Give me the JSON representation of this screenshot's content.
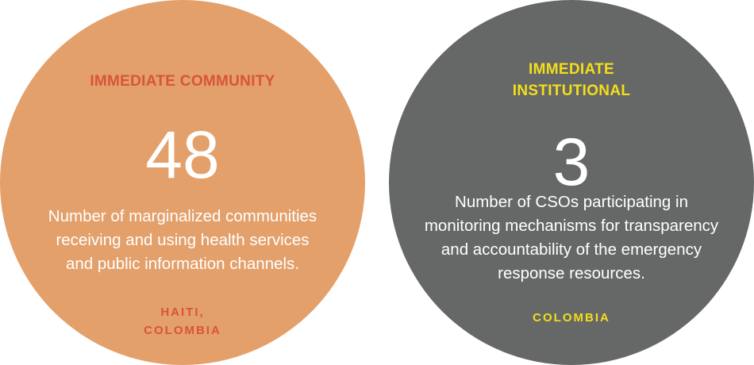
{
  "cards": [
    {
      "heading": "IMMEDIATE COMMUNITY",
      "number": "48",
      "description_lines": [
        "Number of marginalized communities",
        "receiving and using health services",
        "and public information channels."
      ],
      "location_lines": [
        "HAITI,",
        "COLOMBIA"
      ],
      "colors": {
        "background": "#e3a06b",
        "accent": "#d9543a",
        "text": "#ffffff"
      }
    },
    {
      "heading_lines": [
        "IMMEDIATE",
        "INSTITUTIONAL"
      ],
      "number": "3",
      "description_lines": [
        "Number of CSOs participating in",
        "monitoring mechanisms for transparency",
        "and accountability of the emergency",
        "response resources."
      ],
      "location_lines": [
        "COLOMBIA"
      ],
      "colors": {
        "background": "#666867",
        "accent": "#f4de1a",
        "text": "#ffffff"
      }
    }
  ]
}
